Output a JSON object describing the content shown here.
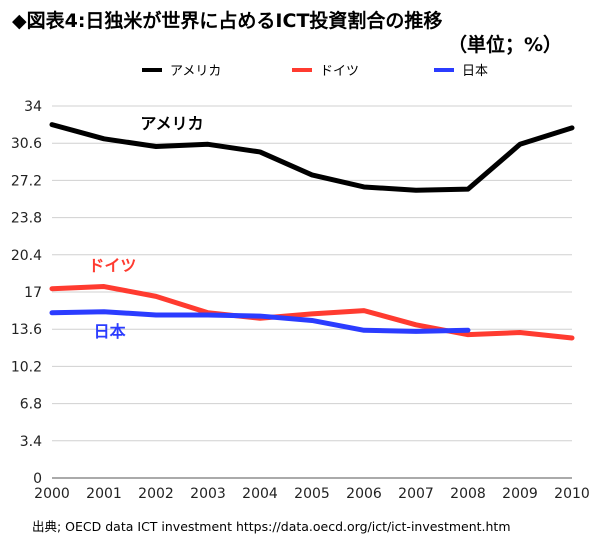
{
  "header": {
    "title": "◆図表4:日独米が世界に占めるICT投資割合の推移",
    "unit": "（単位；%）"
  },
  "legend": [
    {
      "label": "アメリカ",
      "color": "#000000"
    },
    {
      "label": "ドイツ",
      "color": "#ff3b30"
    },
    {
      "label": "日本",
      "color": "#2b3cff"
    }
  ],
  "chart_data": {
    "type": "line",
    "x": [
      2000,
      2001,
      2002,
      2003,
      2004,
      2005,
      2006,
      2007,
      2008,
      2009,
      2010
    ],
    "ylim": [
      0,
      34
    ],
    "yticks": [
      "0",
      "3.4",
      "6.8",
      "10.2",
      "13.6",
      "17",
      "20.4",
      "23.8",
      "27.2",
      "30.6",
      "34"
    ],
    "grid": true,
    "legend_position": "top",
    "series": [
      {
        "name": "アメリカ",
        "color": "#000000",
        "values": [
          32.3,
          31.0,
          30.3,
          30.5,
          29.8,
          27.7,
          26.6,
          26.3,
          26.4,
          30.5,
          32.0
        ]
      },
      {
        "name": "ドイツ",
        "color": "#ff3b30",
        "values": [
          17.3,
          17.5,
          16.6,
          15.1,
          14.6,
          15.0,
          15.3,
          14.0,
          13.1,
          13.3,
          12.8
        ]
      },
      {
        "name": "日本",
        "color": "#2b3cff",
        "values": [
          15.1,
          15.2,
          14.9,
          14.9,
          14.8,
          14.4,
          13.5,
          13.4,
          13.5,
          null,
          null
        ]
      }
    ],
    "annotations": [
      {
        "text": "アメリカ",
        "series": "アメリカ"
      },
      {
        "text": "ドイツ",
        "series": "ドイツ"
      },
      {
        "text": "日本",
        "series": "日本"
      }
    ]
  },
  "footer": {
    "source": "出典; OECD data ICT investment https://data.oecd.org/ict/ict-investment.htm"
  }
}
